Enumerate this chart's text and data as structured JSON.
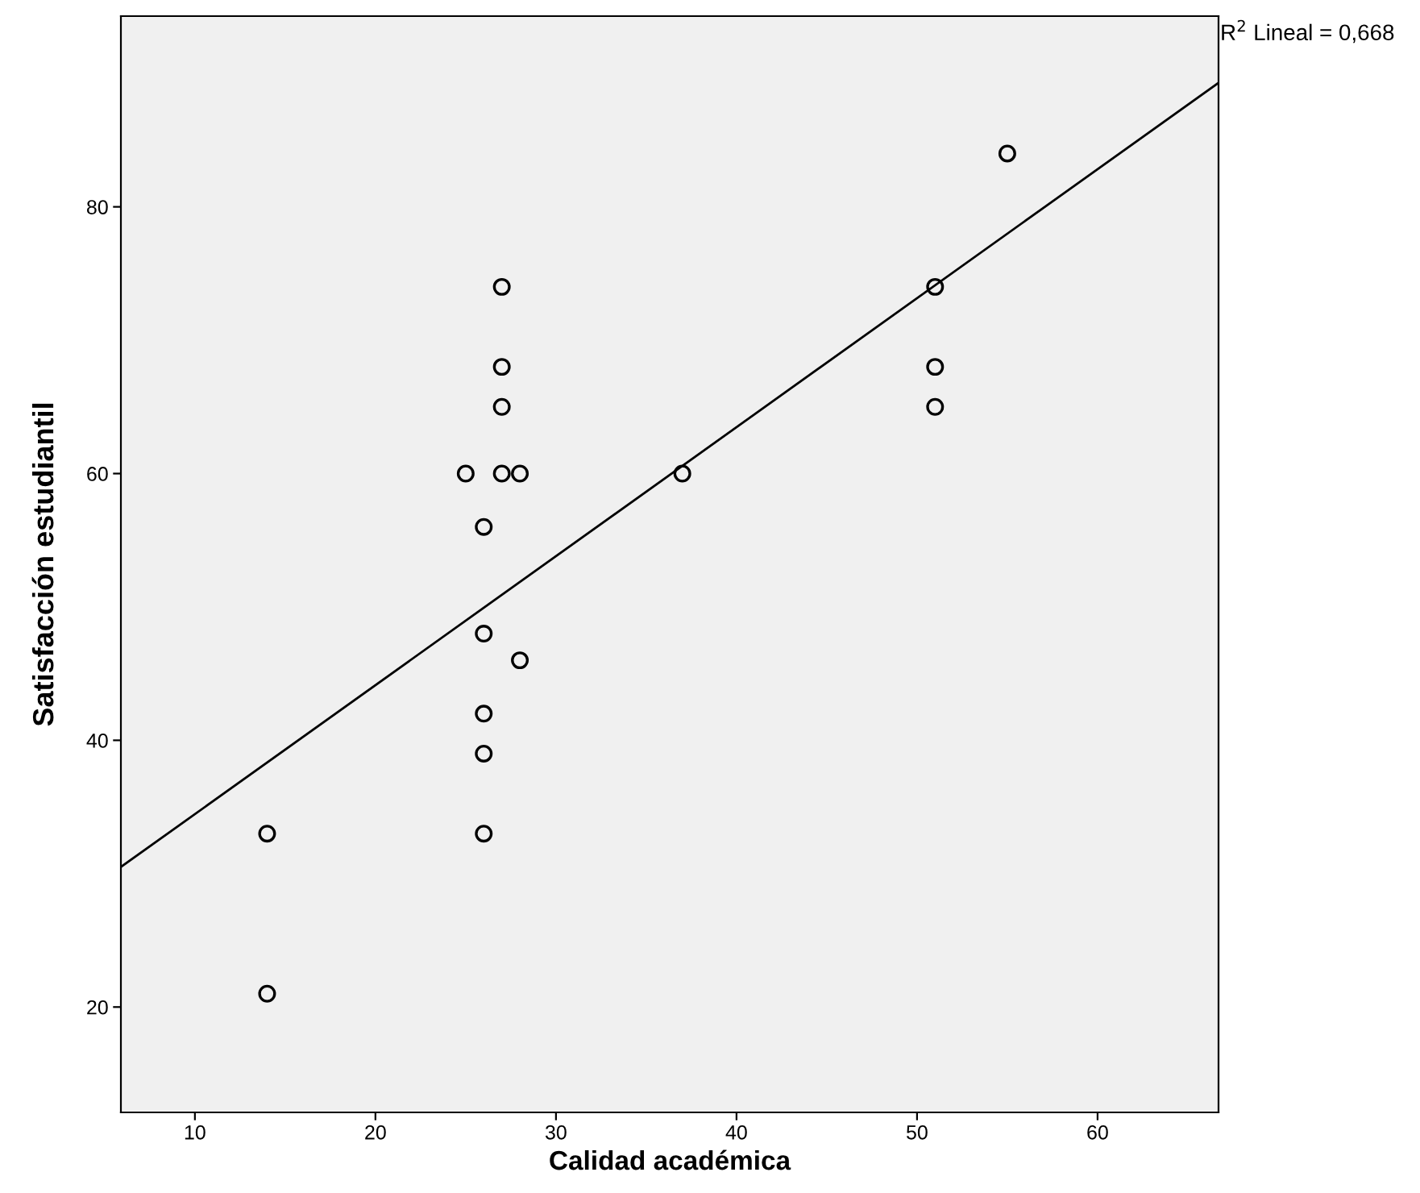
{
  "chart_data": {
    "type": "scatter",
    "xlabel": "Calidad académica",
    "ylabel": "Satisfacción estudiantil",
    "xlim": [
      5.9,
      66.7
    ],
    "ylim": [
      12.1,
      94.3
    ],
    "xticks": [
      10,
      20,
      30,
      40,
      50,
      60
    ],
    "yticks": [
      20,
      40,
      60,
      80
    ],
    "grid": false,
    "annotations": [
      "R$^{2}$ Lineal = 0,668"
    ],
    "series": [
      {
        "marker": "circle",
        "color": "#000000",
        "x": [
          14,
          14,
          25,
          26,
          26,
          26,
          26,
          26,
          27,
          27,
          27,
          27,
          28,
          28,
          37,
          51,
          51,
          51,
          55
        ],
        "values": [
          33,
          21,
          60,
          56,
          48,
          42,
          39,
          33,
          74,
          68,
          65,
          60,
          60,
          46,
          60,
          74,
          68,
          65,
          84
        ]
      },
      {
        "type": "line",
        "color": "#000000",
        "x": [
          5.9,
          66.7
        ],
        "values": [
          30.5,
          89.3
        ]
      }
    ]
  }
}
